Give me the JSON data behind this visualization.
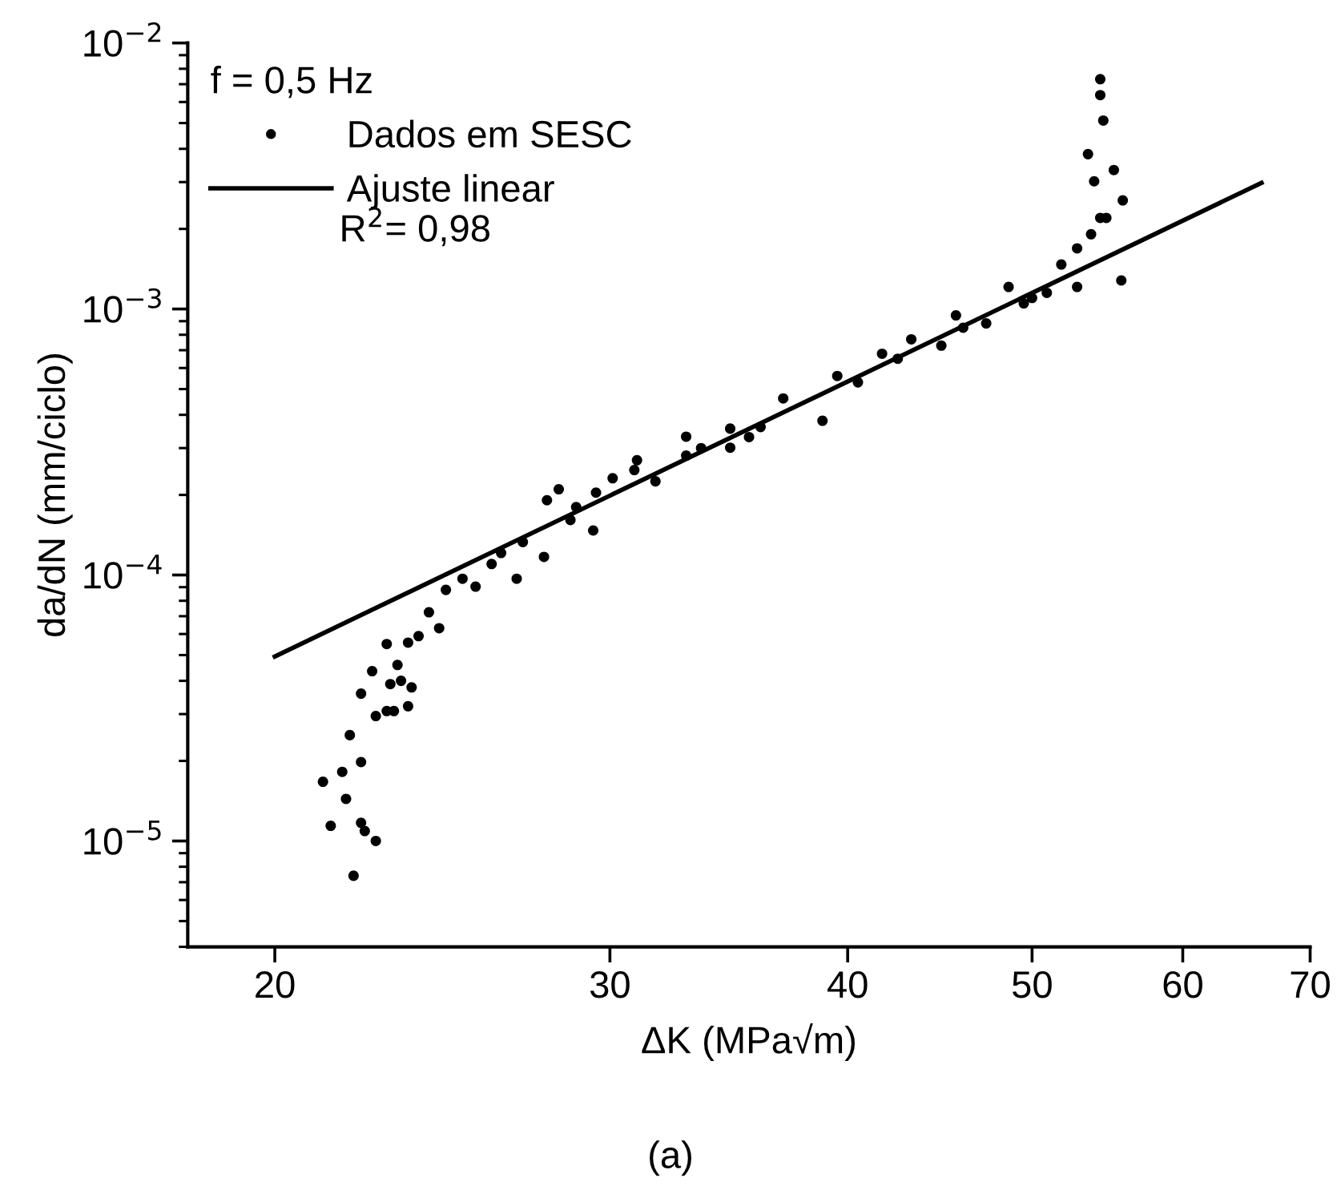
{
  "chart_data": {
    "type": "scatter",
    "xlabel": "ΔK (MPa√m)",
    "ylabel": "da/dN (mm/ciclo)",
    "legend_title": "f = 0,5 Hz",
    "log": "xy",
    "grid": false,
    "legend": "top left",
    "xlim": [
      18,
      70
    ],
    "xticks": [
      20,
      30,
      40,
      50,
      60,
      70
    ],
    "ylim": [
      4e-06,
      0.01
    ],
    "yticks": [
      {
        "value": 1e-05,
        "label": "10$^{−5}$"
      },
      {
        "value": 0.0001,
        "label": "10$^{−4}$"
      },
      {
        "value": 0.001,
        "label": "10$^{−3}$"
      },
      {
        "value": 0.01,
        "label": "10$^{−2}$"
      }
    ],
    "annotations": [
      "R$^{2}$= 0,98",
      "(a)"
    ],
    "series": [
      {
        "name": "Dados em SESC",
        "marker": "circle",
        "color": "#000000",
        "x": [
          21.2,
          21.4,
          21.7,
          21.8,
          21.9,
          22.0,
          22.2,
          22.2,
          22.3,
          22.6,
          22.2,
          22.5,
          22.6,
          22.9,
          23.1,
          23.5,
          23.0,
          23.3,
          23.6,
          22.9,
          23.2,
          23.5,
          23.8,
          24.1,
          24.4,
          24.6,
          25.1,
          25.5,
          26.0,
          26.3,
          26.8,
          27.0,
          27.7,
          27.8,
          28.2,
          28.6,
          28.8,
          29.4,
          29.5,
          30.1,
          30.9,
          31.0,
          31.7,
          32.9,
          33.5,
          34.7,
          32.9,
          34.7,
          35.5,
          36.0,
          37.0,
          38.8,
          39.5,
          40.5,
          41.7,
          42.5,
          43.2,
          44.8,
          45.6,
          46.0,
          47.3,
          48.6,
          49.5,
          50.0,
          50.9,
          51.8,
          52.8,
          53.7,
          54.3,
          53.9,
          53.5,
          54.5,
          54.3,
          54.3,
          55.2,
          55.8,
          55.7,
          52.8,
          54.7
        ],
        "values": [
          1.67e-05,
          1.14e-05,
          1.82e-05,
          1.44e-05,
          2.5e-05,
          7.4e-06,
          1.17e-05,
          1.98e-05,
          1.09e-05,
          1e-05,
          3.58e-05,
          4.35e-05,
          2.95e-05,
          3.08e-05,
          3.08e-05,
          3.21e-05,
          3.89e-05,
          4e-05,
          3.78e-05,
          5.5e-05,
          4.59e-05,
          5.57e-05,
          5.89e-05,
          7.24e-05,
          6.31e-05,
          8.79e-05,
          9.68e-05,
          9.04e-05,
          0.00011,
          0.000121,
          9.68e-05,
          0.000133,
          0.000117,
          0.000191,
          0.00021,
          0.000161,
          0.00018,
          0.000147,
          0.000204,
          0.000231,
          0.000248,
          0.00027,
          0.000225,
          0.000281,
          0.0003,
          0.000301,
          0.000331,
          0.000355,
          0.00033,
          0.00036,
          0.000461,
          0.00038,
          0.00056,
          0.00053,
          0.000679,
          0.00065,
          0.000769,
          0.000728,
          0.000946,
          0.00085,
          0.000883,
          0.00121,
          0.00105,
          0.0011,
          0.00115,
          0.00147,
          0.00169,
          0.00191,
          0.0022,
          0.00302,
          0.00382,
          0.00511,
          0.00637,
          0.00731,
          0.00333,
          0.00256,
          0.00128,
          0.00121,
          0.0022
        ]
      },
      {
        "name": "Ajuste linear",
        "type": "line",
        "line_style": "solid",
        "color": "#000000",
        "x": [
          20,
          66
        ],
        "values": [
          4.94e-05,
          0.00298
        ]
      }
    ]
  }
}
